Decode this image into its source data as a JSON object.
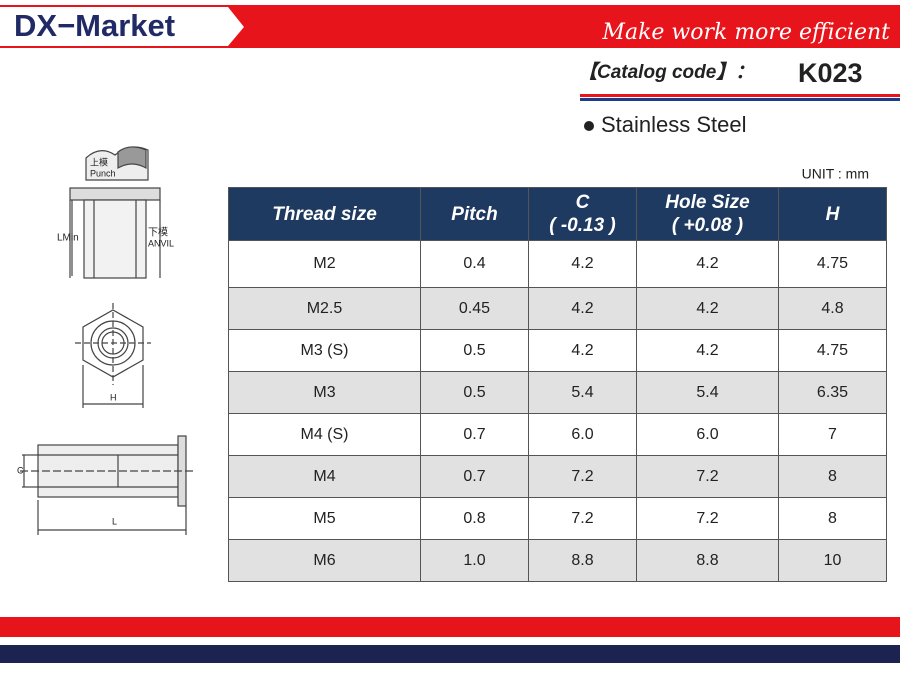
{
  "header": {
    "brand": "DX−Market",
    "slogan": "Make work more efficient"
  },
  "catalog": {
    "label": "【Catalog code】：",
    "code": "K023"
  },
  "material": "Stainless Steel",
  "diagram": {
    "punch_cn": "上模",
    "punch": "Punch",
    "anvil_cn": "下模",
    "anvil": "ANVIL",
    "lmin": "LMin",
    "h": "H",
    "c": "C",
    "l": "L"
  },
  "unit": "UNIT : mm",
  "table": {
    "headers": [
      {
        "title": "Thread size"
      },
      {
        "title": "Pitch"
      },
      {
        "title": "C",
        "sub": "( -0.13 )"
      },
      {
        "title": "Hole Size",
        "sub": "( +0.08 )"
      },
      {
        "title": "H"
      }
    ],
    "rows": [
      [
        "M2",
        "0.4",
        "4.2",
        "4.2",
        "4.75"
      ],
      [
        "M2.5",
        "0.45",
        "4.2",
        "4.2",
        "4.8"
      ],
      [
        "M3 (S)",
        "0.5",
        "4.2",
        "4.2",
        "4.75"
      ],
      [
        "M3",
        "0.5",
        "5.4",
        "5.4",
        "6.35"
      ],
      [
        "M4 (S)",
        "0.7",
        "6.0",
        "6.0",
        "7"
      ],
      [
        "M4",
        "0.7",
        "7.2",
        "7.2",
        "8"
      ],
      [
        "M5",
        "0.8",
        "7.2",
        "7.2",
        "8"
      ],
      [
        "M6",
        "1.0",
        "8.8",
        "8.8",
        "10"
      ]
    ]
  }
}
